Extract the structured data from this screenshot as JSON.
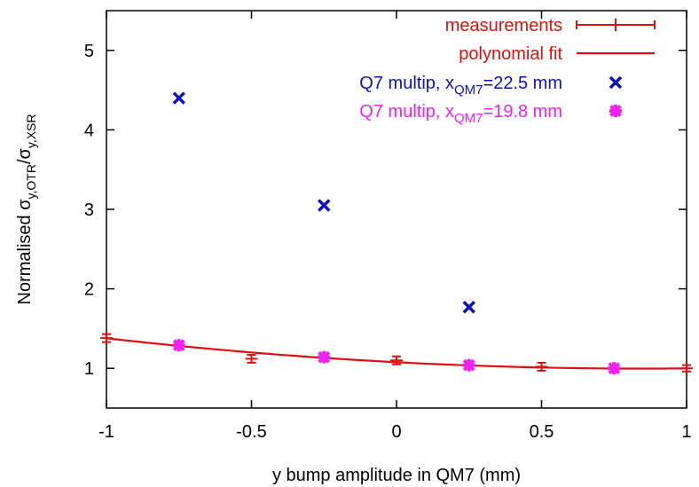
{
  "chart_data": {
    "type": "scatter",
    "title": "",
    "xlabel": "y bump amplitude in QM7 (mm)",
    "ylabel": {
      "main": "Normalised σ",
      "sub1": "y,OTR",
      "sep": "/σ",
      "sub2": "y,XSR"
    },
    "xlim": [
      -1,
      1
    ],
    "ylim": [
      0.5,
      5.5
    ],
    "x_ticks": [
      -1,
      -0.5,
      0,
      0.5,
      1
    ],
    "x_tick_labels": [
      "-1",
      "-0.5",
      "0",
      "0.5",
      "1"
    ],
    "y_ticks": [
      1,
      2,
      3,
      4,
      5
    ],
    "y_tick_labels": [
      "1",
      "2",
      "3",
      "4",
      "5"
    ],
    "grid": false,
    "legend_position": "top-right",
    "series": [
      {
        "name": "measurements",
        "marker": "errorbar-plus",
        "color": "#dd1111",
        "points": [
          {
            "x": -1.0,
            "y": 1.38,
            "err": 0.05
          },
          {
            "x": -0.5,
            "y": 1.12,
            "err": 0.05
          },
          {
            "x": 0.0,
            "y": 1.1,
            "err": 0.05
          },
          {
            "x": 0.5,
            "y": 1.02,
            "err": 0.05
          },
          {
            "x": 1.0,
            "y": 1.0,
            "err": 0.04
          }
        ]
      },
      {
        "name": "polynomial fit",
        "marker": "line",
        "color": "#dd1111",
        "coefficients": [
          1.0768,
          -0.18975,
          0.1118
        ]
      },
      {
        "name": "Q7 multip, x",
        "name_sub": "QM7",
        "name_rest": "=22.5 mm",
        "marker": "x",
        "color": "#1111bb",
        "points": [
          {
            "x": -0.75,
            "y": 4.4
          },
          {
            "x": -0.25,
            "y": 3.05
          },
          {
            "x": 0.25,
            "y": 1.77
          }
        ]
      },
      {
        "name": "Q7 multip, x",
        "name_sub": "QM7",
        "name_rest": "=19.8 mm",
        "marker": "star",
        "color": "#ee22ee",
        "points": [
          {
            "x": -0.75,
            "y": 1.29
          },
          {
            "x": -0.25,
            "y": 1.14
          },
          {
            "x": 0.25,
            "y": 1.04
          },
          {
            "x": 0.75,
            "y": 1.0
          }
        ]
      }
    ]
  }
}
